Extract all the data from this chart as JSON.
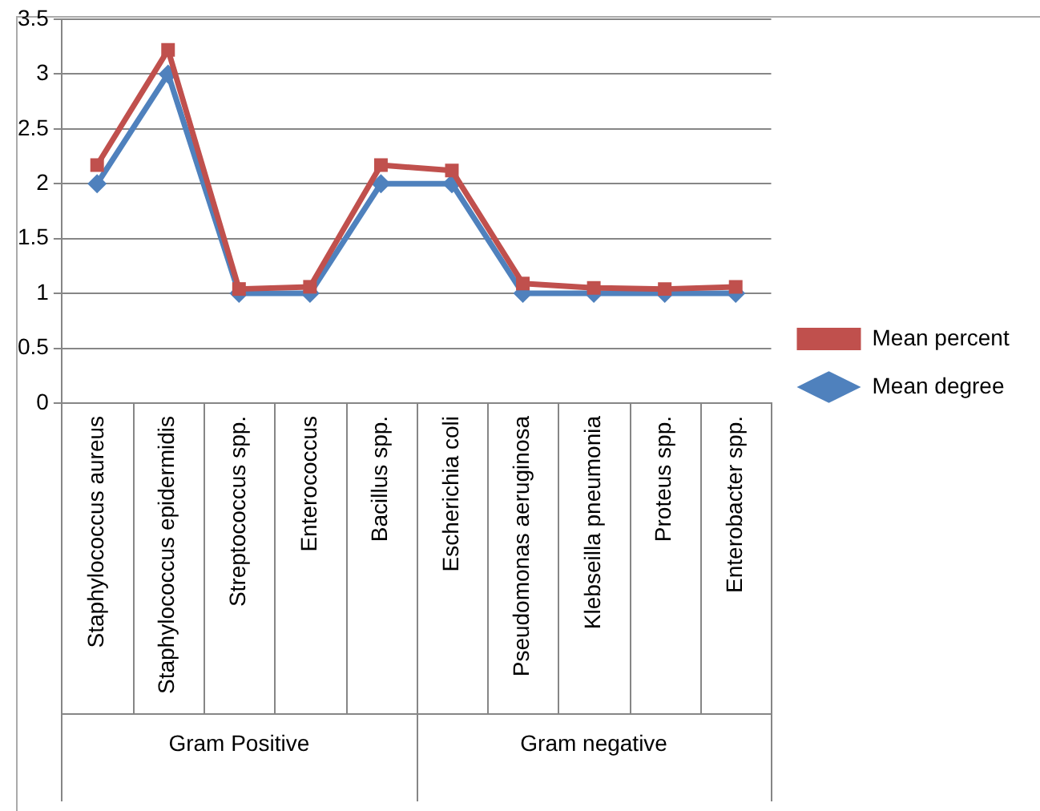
{
  "chart_data": {
    "type": "line",
    "categories": [
      "Staphylococcus aureus",
      "Staphylococcus epidermidis",
      "Streptococcus spp.",
      "Enterococcus",
      "Bacillus spp.",
      "Escherichia coli",
      "Pseudomonas aeruginosa",
      "Klebseilla pneumonia",
      "Proteus spp.",
      "Enterobacter spp."
    ],
    "series": [
      {
        "name": "Mean percent",
        "color": "#c0504d",
        "marker": "square",
        "values": [
          2.17,
          3.22,
          1.04,
          1.06,
          2.17,
          2.12,
          1.09,
          1.05,
          1.04,
          1.06
        ]
      },
      {
        "name": "Mean degree",
        "color": "#4f81bd",
        "marker": "diamond",
        "values": [
          2,
          3,
          1,
          1,
          2,
          2,
          1,
          1,
          1,
          1
        ]
      }
    ],
    "ylim": [
      0,
      3.5
    ],
    "yticks": [
      0,
      0.5,
      1,
      1.5,
      2,
      2.5,
      3,
      3.5
    ],
    "grid": "y",
    "legend": "right",
    "annotations": [
      "Gram Positive",
      "Gram negative"
    ]
  }
}
